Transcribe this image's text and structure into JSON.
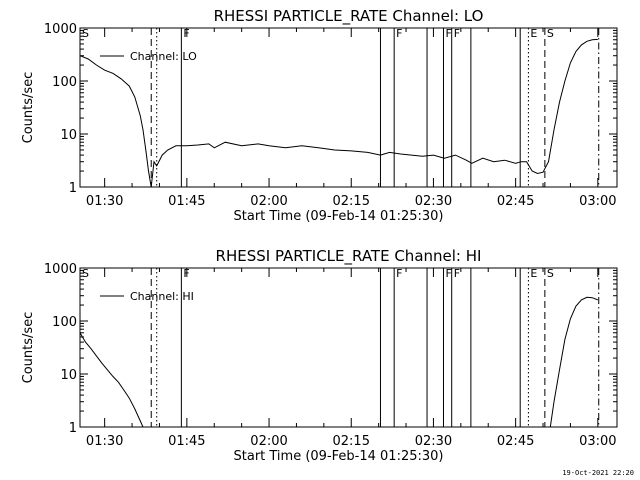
{
  "footer": {
    "timestamp": "19-Oct-2021 22:20"
  },
  "chart_data": [
    {
      "type": "line",
      "title": "RHESSI PARTICLE_RATE Channel: LO",
      "xlabel": "Start Time (09-Feb-14 01:25:30)",
      "ylabel": "Counts/sec",
      "yscale": "log",
      "ylim": [
        1,
        1000
      ],
      "xlim_minutes_after_01_25_30": [
        0,
        98
      ],
      "x_ticks": [
        "01:30",
        "01:45",
        "02:00",
        "02:15",
        "02:30",
        "02:45",
        "03:00"
      ],
      "y_ticks": [
        "1",
        "10",
        "100",
        "1000"
      ],
      "legend": {
        "placement": "top-left",
        "entries": [
          "Channel: LO"
        ]
      },
      "grid": false,
      "markers": [
        {
          "label": "S",
          "time": "01:25:30",
          "style": "label-only"
        },
        {
          "label": "",
          "time": "01:38:30",
          "style": "dashed"
        },
        {
          "label": "",
          "time": "01:39:30",
          "style": "dotted"
        },
        {
          "label": "F",
          "time": "01:44:00",
          "style": "solid"
        },
        {
          "label": "",
          "time": "02:20:20",
          "style": "solid"
        },
        {
          "label": "F",
          "time": "02:22:50",
          "style": "solid"
        },
        {
          "label": "",
          "time": "02:28:50",
          "style": "solid"
        },
        {
          "label": "F",
          "time": "02:31:50",
          "style": "solid"
        },
        {
          "label": "F",
          "time": "02:33:20",
          "style": "solid"
        },
        {
          "label": "",
          "time": "02:36:50",
          "style": "solid"
        },
        {
          "label": "",
          "time": "02:45:50",
          "style": "solid"
        },
        {
          "label": "E",
          "time": "02:47:20",
          "style": "dotted"
        },
        {
          "label": "S",
          "time": "02:50:20",
          "style": "dashed"
        },
        {
          "label": "",
          "time": "03:00:10",
          "style": "dashdot"
        }
      ],
      "series": [
        {
          "name": "Channel: LO",
          "x": [
            "01:25:30",
            "01:27:00",
            "01:28:30",
            "01:30:00",
            "01:31:30",
            "01:33:00",
            "01:34:30",
            "01:35:30",
            "01:36:30",
            "01:37:00",
            "01:37:30",
            "01:38:00",
            "01:38:30",
            "01:39:00",
            "01:39:30",
            "01:40:30",
            "01:41:30",
            "01:43:00",
            "01:45:00",
            "01:47:00",
            "01:49:00",
            "01:50:00",
            "01:52:00",
            "01:55:00",
            "01:58:00",
            "02:00:00",
            "02:03:00",
            "02:06:00",
            "02:09:00",
            "02:12:00",
            "02:15:00",
            "02:18:00",
            "02:20:20",
            "02:22:00",
            "02:24:00",
            "02:26:00",
            "02:28:00",
            "02:30:00",
            "02:32:00",
            "02:34:00",
            "02:36:00",
            "02:37:00",
            "02:39:00",
            "02:41:00",
            "02:43:00",
            "02:45:00",
            "02:46:00",
            "02:47:00",
            "02:48:00",
            "02:49:00",
            "02:50:00",
            "02:51:00",
            "02:52:00",
            "02:53:00",
            "02:54:00",
            "02:55:00",
            "02:56:00",
            "02:57:00",
            "02:58:00",
            "02:59:00",
            "03:00:00"
          ],
          "values": [
            300,
            260,
            200,
            160,
            140,
            110,
            80,
            50,
            22,
            12,
            5,
            2,
            1,
            3,
            2.5,
            4,
            5,
            6,
            6,
            6.2,
            6.5,
            5.5,
            7,
            6,
            6.5,
            6,
            5.5,
            6,
            5.5,
            5,
            4.8,
            4.5,
            4,
            4.5,
            4.2,
            4,
            3.8,
            4,
            3.5,
            4,
            3.2,
            2.8,
            3.5,
            3,
            3.2,
            2.8,
            3,
            3,
            2,
            1.8,
            1.9,
            3,
            12,
            40,
            100,
            220,
            360,
            480,
            560,
            600,
            610
          ]
        }
      ]
    },
    {
      "type": "line",
      "title": "RHESSI PARTICLE_RATE Channel: HI",
      "xlabel": "Start Time (09-Feb-14 01:25:30)",
      "ylabel": "Counts/sec",
      "yscale": "log",
      "ylim": [
        1,
        1000
      ],
      "xlim_minutes_after_01_25_30": [
        0,
        98
      ],
      "x_ticks": [
        "01:30",
        "01:45",
        "02:00",
        "02:15",
        "02:30",
        "02:45",
        "03:00"
      ],
      "y_ticks": [
        "1",
        "10",
        "100",
        "1000"
      ],
      "legend": {
        "placement": "top-left",
        "entries": [
          "Channel: HI"
        ]
      },
      "grid": false,
      "markers": [
        {
          "label": "S",
          "time": "01:25:30",
          "style": "label-only"
        },
        {
          "label": "",
          "time": "01:38:30",
          "style": "dashed"
        },
        {
          "label": "",
          "time": "01:39:30",
          "style": "dotted"
        },
        {
          "label": "F",
          "time": "01:44:00",
          "style": "solid"
        },
        {
          "label": "",
          "time": "02:20:20",
          "style": "solid"
        },
        {
          "label": "F",
          "time": "02:22:50",
          "style": "solid"
        },
        {
          "label": "",
          "time": "02:28:50",
          "style": "solid"
        },
        {
          "label": "F",
          "time": "02:31:50",
          "style": "solid"
        },
        {
          "label": "F",
          "time": "02:33:20",
          "style": "solid"
        },
        {
          "label": "",
          "time": "02:36:50",
          "style": "solid"
        },
        {
          "label": "",
          "time": "02:45:50",
          "style": "solid"
        },
        {
          "label": "E",
          "time": "02:47:20",
          "style": "dotted"
        },
        {
          "label": "S",
          "time": "02:50:20",
          "style": "dashed"
        },
        {
          "label": "",
          "time": "03:00:10",
          "style": "dashdot"
        }
      ],
      "series": [
        {
          "name": "Channel: HI",
          "x": [
            "01:25:30",
            "01:26:30",
            "01:27:30",
            "01:28:30",
            "01:29:30",
            "01:30:30",
            "01:31:30",
            "01:32:30",
            "01:33:30",
            "01:34:30",
            "01:35:30",
            "01:36:30",
            "01:37:00",
            "02:51:20",
            "02:52:00",
            "02:53:00",
            "02:54:00",
            "02:55:00",
            "02:56:00",
            "02:57:00",
            "02:58:00",
            "02:59:00",
            "03:00:00"
          ],
          "values": [
            60,
            40,
            30,
            22,
            16,
            12,
            9,
            7,
            5,
            3.5,
            2.2,
            1.3,
            1,
            1,
            3,
            12,
            45,
            110,
            190,
            250,
            280,
            275,
            250
          ]
        }
      ]
    }
  ]
}
